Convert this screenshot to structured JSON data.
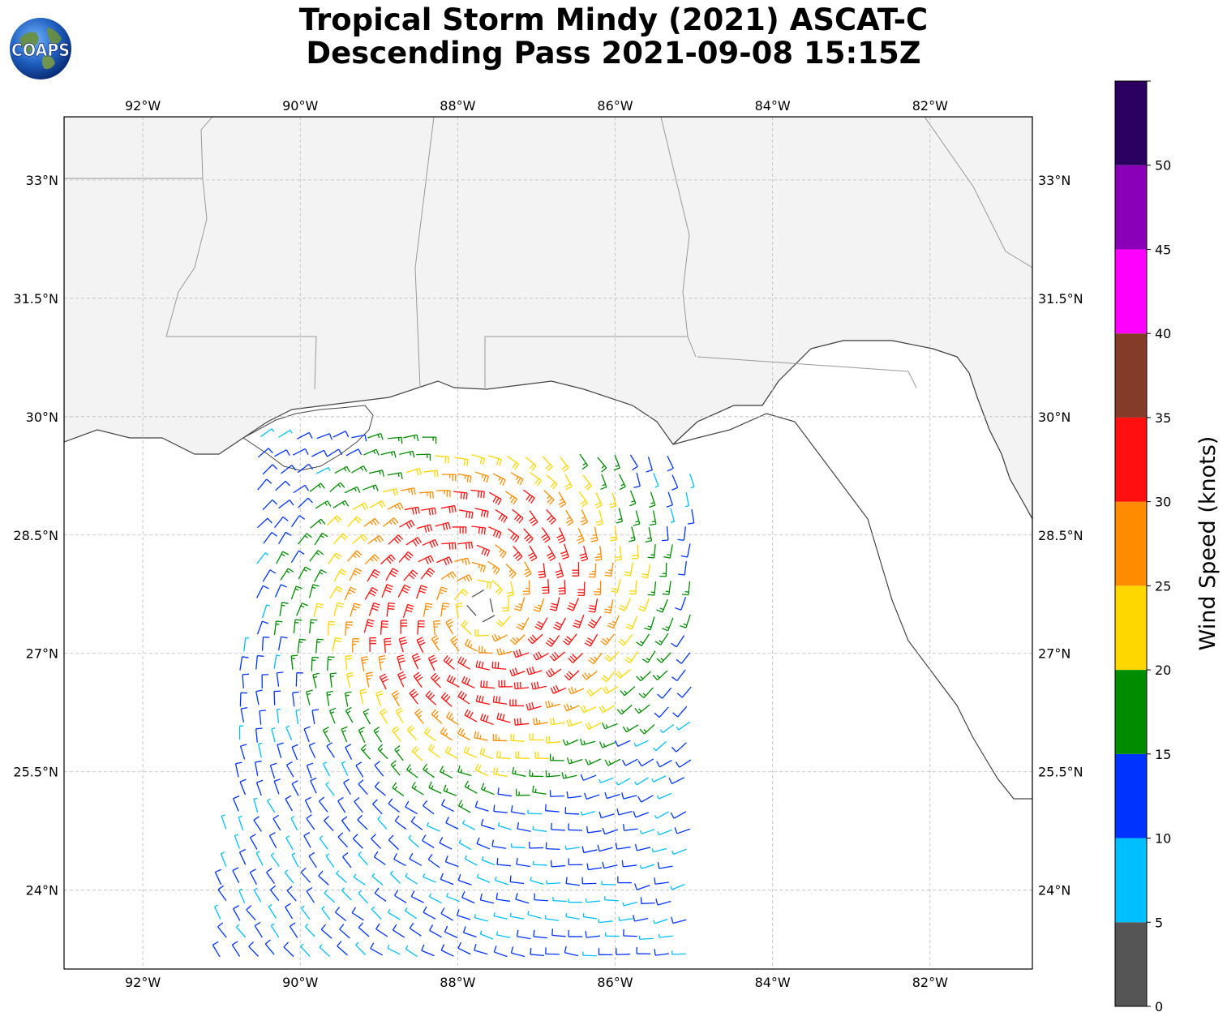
{
  "title": {
    "line1": "Tropical Storm Mindy (2021) ASCAT-C",
    "line2": "Descending Pass 2021-09-08 15:15Z"
  },
  "logo": {
    "text": "COAPS",
    "icon": "globe-icon"
  },
  "map": {
    "lon_range": [
      -93.0,
      -80.7
    ],
    "lat_range": [
      23.0,
      33.8
    ],
    "lon_ticks": [
      "92°W",
      "90°W",
      "88°W",
      "86°W",
      "84°W",
      "82°W"
    ],
    "lon_tick_values": [
      -92,
      -90,
      -88,
      -86,
      -84,
      -82
    ],
    "lat_ticks": [
      "33°N",
      "31.5°N",
      "30°N",
      "28.5°N",
      "27°N",
      "25.5°N",
      "24°N"
    ],
    "lat_tick_values": [
      33,
      31.5,
      30,
      28.5,
      27,
      25.5,
      24
    ],
    "gridlines": true,
    "land_color": "#f3f3f3",
    "ocean_color": "#ffffff"
  },
  "colorbar": {
    "label": "Wind Speed (knots)",
    "tick_labels": [
      "0",
      "5",
      "10",
      "15",
      "20",
      "25",
      "30",
      "35",
      "40",
      "45",
      "50"
    ],
    "bins": [
      {
        "min": 0,
        "max": 5,
        "color": "#555555"
      },
      {
        "min": 5,
        "max": 10,
        "color": "#00bfff"
      },
      {
        "min": 10,
        "max": 15,
        "color": "#0033ff"
      },
      {
        "min": 15,
        "max": 20,
        "color": "#008c00"
      },
      {
        "min": 20,
        "max": 25,
        "color": "#ffd700"
      },
      {
        "min": 25,
        "max": 30,
        "color": "#ff8c00"
      },
      {
        "min": 30,
        "max": 35,
        "color": "#ff0f0f"
      },
      {
        "min": 35,
        "max": 40,
        "color": "#843c28"
      },
      {
        "min": 40,
        "max": 45,
        "color": "#ff00ff"
      },
      {
        "min": 45,
        "max": 50,
        "color": "#8a00b8"
      },
      {
        "min": 50,
        "max": 55,
        "color": "#2a0060"
      }
    ]
  },
  "swath": {
    "corners_lonlat": [
      [
        -91.1,
        23.0
      ],
      [
        -85.1,
        23.0
      ],
      [
        -84.9,
        29.5
      ],
      [
        -90.5,
        29.9
      ]
    ],
    "center_lonlat": [
      -87.7,
      27.6
    ]
  }
}
